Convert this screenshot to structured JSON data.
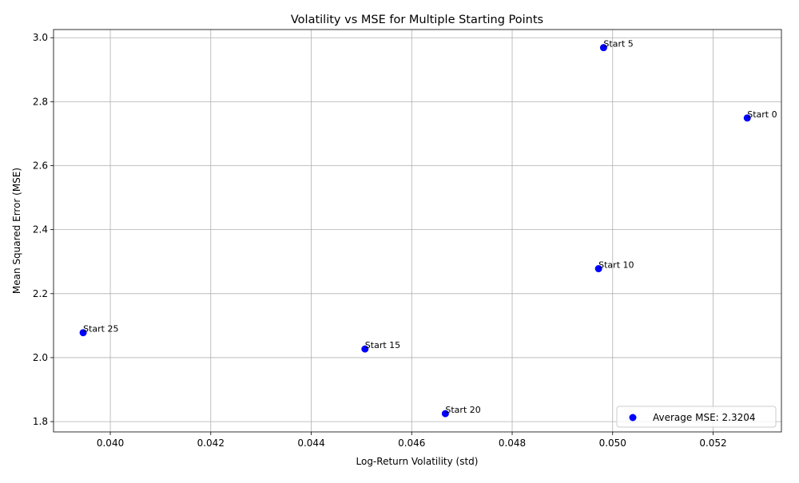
{
  "chart_data": {
    "type": "scatter",
    "title": "Volatility vs MSE for Multiple Starting Points",
    "xlabel": "Log-Return Volatility (std)",
    "ylabel": "Mean Squared Error (MSE)",
    "xlim": [
      0.03887,
      0.05336
    ],
    "ylim": [
      1.7678,
      3.0255
    ],
    "x_ticks": [
      0.04,
      0.042,
      0.044,
      0.046,
      0.048,
      0.05,
      0.052
    ],
    "x_tick_labels": [
      "0.040",
      "0.042",
      "0.044",
      "0.046",
      "0.048",
      "0.050",
      "0.052"
    ],
    "y_ticks": [
      1.8,
      2.0,
      2.2,
      2.4,
      2.6,
      2.8,
      3.0
    ],
    "y_tick_labels": [
      "1.8",
      "2.0",
      "2.2",
      "2.4",
      "2.6",
      "2.8",
      "3.0"
    ],
    "grid": true,
    "legend_position": "bottom-right",
    "legend_label": "Average MSE: 2.3204",
    "marker_color": "#0000ff",
    "points": [
      {
        "x": 0.05268,
        "y": 2.749,
        "label": "Start 0"
      },
      {
        "x": 0.04982,
        "y": 2.969,
        "label": "Start 5"
      },
      {
        "x": 0.04972,
        "y": 2.278,
        "label": "Start 10"
      },
      {
        "x": 0.04507,
        "y": 2.027,
        "label": "Start 15"
      },
      {
        "x": 0.04667,
        "y": 1.825,
        "label": "Start 20"
      },
      {
        "x": 0.03946,
        "y": 2.078,
        "label": "Start 25"
      }
    ]
  }
}
